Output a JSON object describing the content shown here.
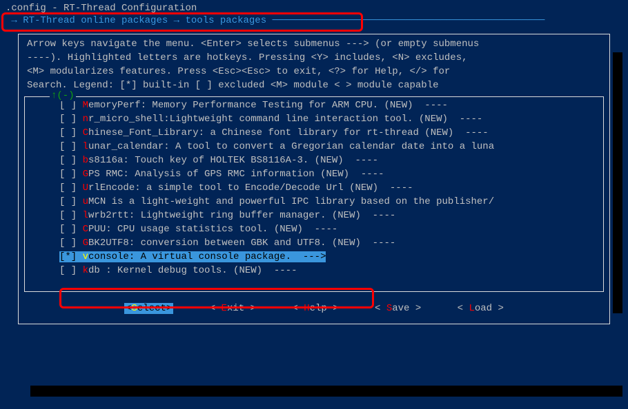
{
  "colors": {
    "background": "#012456",
    "text": "#c0c0c0",
    "accent": "#3a96dd",
    "hotkey": "#ff0000",
    "hotkey_selected": "#ffff00",
    "green": "#13a10e",
    "border": "#dcdcdc",
    "highlight_border": "#ff0000"
  },
  "title": ".config - RT-Thread Configuration",
  "breadcrumb_arrow": "→",
  "breadcrumb_1": "RT-Thread online packages",
  "breadcrumb_2": "tools packages",
  "breadcrumb_dashes": "───────────────────────────────────────────────",
  "section_title": "tools packages",
  "help_line1": "Arrow keys navigate the menu.  <Enter> selects submenus ---> (or empty submenus",
  "help_line2": "----).  Highlighted letters are hotkeys.  Pressing <Y> includes, <N> excludes,",
  "help_line3": "<M> modularizes features.  Press <Esc><Esc> to exit, <?> for Help, </> for",
  "help_line4": "Search.  Legend: [*] built-in  [ ] excluded  <M> module  < > module capable",
  "scroll_indicator": "↑(-)",
  "items": [
    {
      "sel": "[ ]",
      "hk": "M",
      "text": "emoryPerf: Memory Performance Testing for ARM CPU. (NEW)  ----"
    },
    {
      "sel": "[ ]",
      "hk": "n",
      "text": "r_micro_shell:Lightweight command line interaction tool. (NEW)  ----"
    },
    {
      "sel": "[ ]",
      "hk": "C",
      "text": "hinese_Font_Library: a Chinese font library for rt-thread (NEW)  ----"
    },
    {
      "sel": "[ ]",
      "hk": "l",
      "text": "unar_calendar: A tool to convert a Gregorian calendar date into a luna"
    },
    {
      "sel": "[ ]",
      "hk": "b",
      "text": "s8116a: Touch key of HOLTEK BS8116A-3. (NEW)  ----"
    },
    {
      "sel": "[ ]",
      "hk": "G",
      "text": "PS RMC: Analysis of GPS RMC information (NEW)  ----"
    },
    {
      "sel": "[ ]",
      "hk": "U",
      "text": "rlEncode: a simple tool to Encode/Decode Url (NEW)  ----"
    },
    {
      "sel": "[ ]",
      "hk": "u",
      "text": "MCN is a light-weight and powerful IPC library based on the publisher/"
    },
    {
      "sel": "[ ]",
      "hk": "l",
      "text": "wrb2rtt: Lightweight ring buffer manager. (NEW)  ----"
    },
    {
      "sel": "[ ]",
      "hk": "C",
      "text": "PUU: CPU usage statistics tool. (NEW)  ----"
    },
    {
      "sel": "[ ]",
      "hk": "G",
      "text": "BK2UTF8: conversion between GBK and UTF8. (NEW)  ----"
    },
    {
      "sel": "[*]",
      "hk": "v",
      "text": "console: A virtual console package.  --->",
      "selected": true
    },
    {
      "sel": "[ ]",
      "hk": "k",
      "text": "db : Kernel debug tools. (NEW)  ----"
    }
  ],
  "buttons": {
    "select": {
      "bracket_l": "<",
      "hk": "S",
      "rest": "elect",
      "bracket_r": ">",
      "selected": true
    },
    "exit": {
      "bracket_l": "< ",
      "hk": "E",
      "rest": "xit ",
      "bracket_r": ">",
      "selected": false
    },
    "help": {
      "bracket_l": "< ",
      "hk": "H",
      "rest": "elp ",
      "bracket_r": ">",
      "selected": false
    },
    "save": {
      "bracket_l": "< ",
      "hk": "S",
      "rest": "ave ",
      "bracket_r": ">",
      "selected": false
    },
    "load": {
      "bracket_l": "< ",
      "hk": "L",
      "rest": "oad ",
      "bracket_r": ">",
      "selected": false
    }
  }
}
